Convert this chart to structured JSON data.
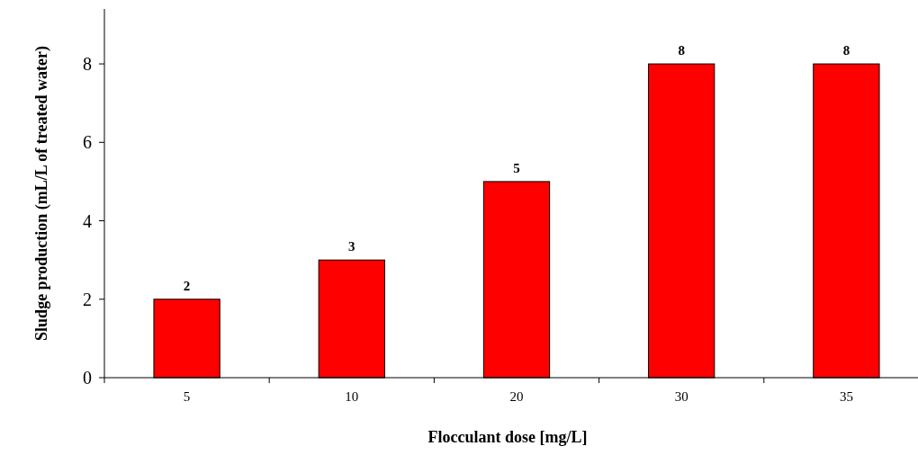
{
  "chart_data": {
    "type": "bar",
    "xlabel": "Flocculant dose [mg/L]",
    "ylabel": "Sludge production (mL/L of treated water)",
    "categories": [
      "5",
      "10",
      "20",
      "30",
      "35"
    ],
    "values": [
      2,
      3,
      5,
      8,
      8
    ],
    "color": "#ff0000",
    "ylim": [
      0,
      9.4
    ],
    "yticks": [
      0,
      2,
      4,
      6,
      8
    ],
    "grid": false,
    "data_labels": true
  }
}
